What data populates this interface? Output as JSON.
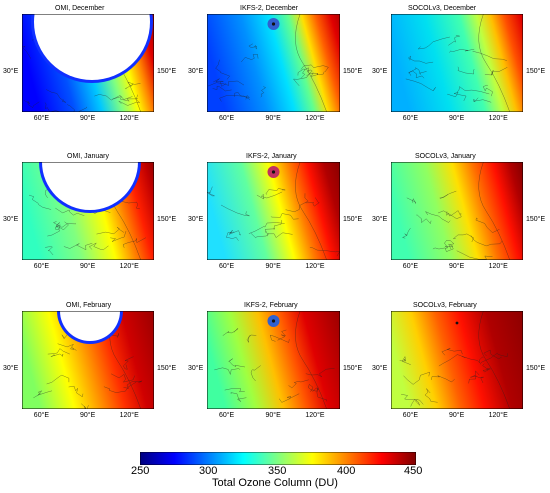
{
  "panels": [
    {
      "title": "OMI, December",
      "month": "December",
      "source": "OMI",
      "lat_label": "30°E",
      "lon_label": "150°E",
      "x_ticks": [
        "60°E",
        "90°E",
        "120°E"
      ]
    },
    {
      "title": "IKFS-2, December",
      "month": "December",
      "source": "IKFS-2",
      "lat_label": "30°E",
      "lon_label": "150°E",
      "x_ticks": [
        "60°E",
        "90°E",
        "120°E"
      ]
    },
    {
      "title": "SOCOLv3, December",
      "month": "December",
      "source": "SOCOLv3",
      "lat_label": "30°E",
      "lon_label": "150°E",
      "x_ticks": [
        "60°E",
        "90°E",
        "120°E"
      ]
    },
    {
      "title": "OMI, January",
      "month": "January",
      "source": "OMI",
      "lat_label": "30°E",
      "lon_label": "150°E",
      "x_ticks": [
        "60°E",
        "90°E",
        "120°E"
      ]
    },
    {
      "title": "IKFS-2, January",
      "month": "January",
      "source": "IKFS-2",
      "lat_label": "30°E",
      "lon_label": "150°E",
      "x_ticks": [
        "60°E",
        "90°E",
        "120°E"
      ]
    },
    {
      "title": "SOCOLv3, January",
      "month": "January",
      "source": "SOCOLv3",
      "lat_label": "30°E",
      "lon_label": "150°E",
      "x_ticks": [
        "60°E",
        "90°E",
        "120°E"
      ]
    },
    {
      "title": "OMI, February",
      "month": "February",
      "source": "OMI",
      "lat_label": "30°E",
      "lon_label": "150°E",
      "x_ticks": [
        "60°E",
        "90°E",
        "120°E"
      ]
    },
    {
      "title": "IKFS-2, February",
      "month": "February",
      "source": "IKFS-2",
      "lat_label": "30°E",
      "lon_label": "150°E",
      "x_ticks": [
        "60°E",
        "90°E",
        "120°E"
      ]
    },
    {
      "title": "SOCOLv3, February",
      "month": "February",
      "source": "SOCOLv3",
      "lat_label": "30°E",
      "lon_label": "150°E",
      "x_ticks": [
        "60°E",
        "90°E",
        "120°E"
      ]
    }
  ],
  "colorbar": {
    "label": "Total Ozone Column (DU)",
    "ticks": [
      "250",
      "300",
      "350",
      "400",
      "450"
    ],
    "range": [
      250,
      450
    ],
    "colors": [
      "#00007f",
      "#0000ff",
      "#0080ff",
      "#00ffff",
      "#80ff80",
      "#ffff00",
      "#ff8000",
      "#ff0000",
      "#7f0000"
    ]
  }
}
